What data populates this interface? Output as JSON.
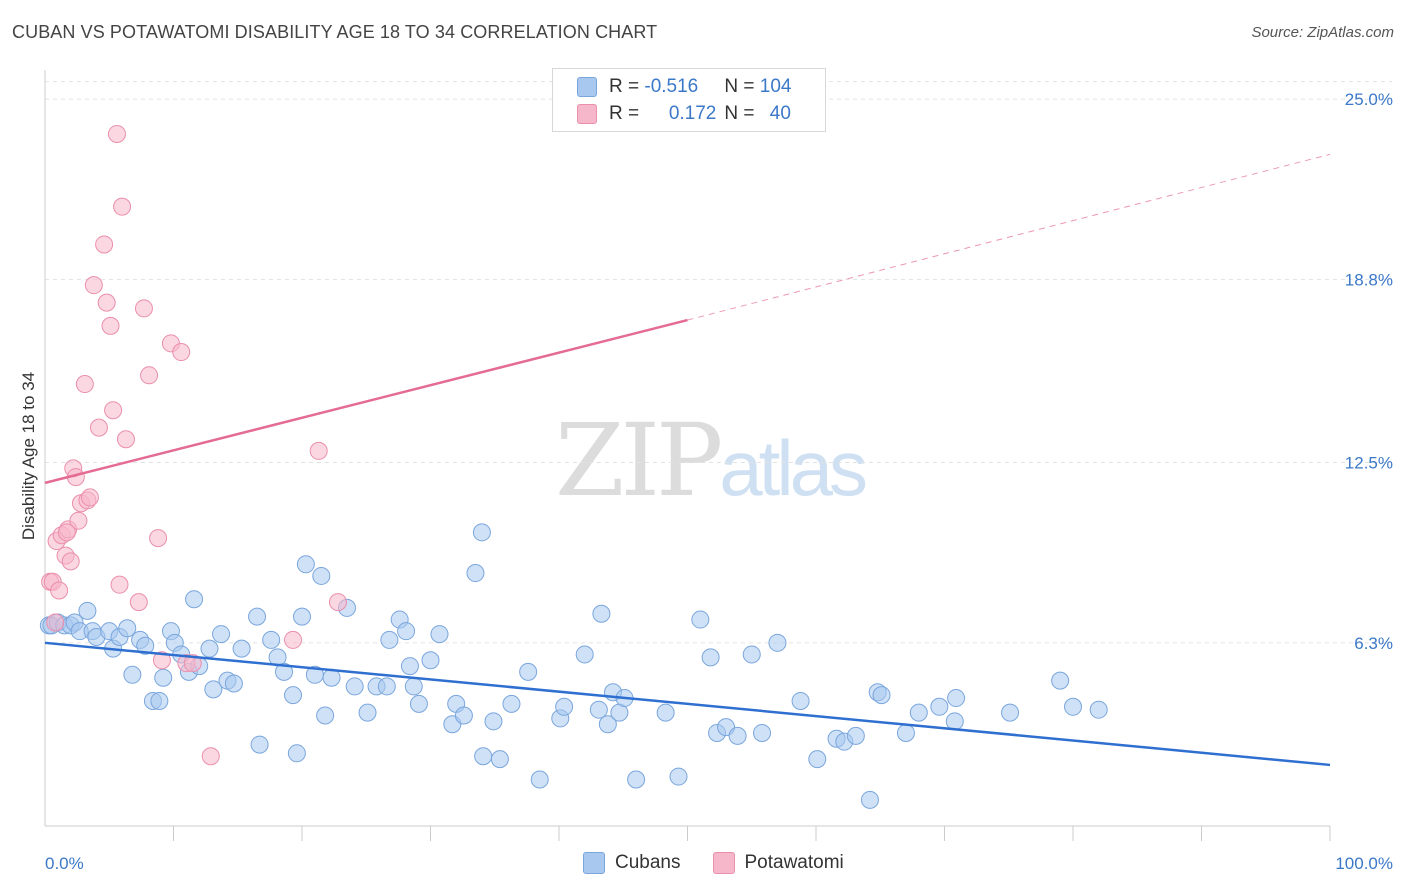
{
  "title": "CUBAN VS POTAWATOMI DISABILITY AGE 18 TO 34 CORRELATION CHART",
  "source": "Source: ZipAtlas.com",
  "watermark": {
    "zip": "ZIP",
    "atlas": "atlas"
  },
  "legend": {
    "rows": [
      {
        "r_label": "R = ",
        "r_value": "-0.516",
        "n_label": "N = ",
        "n_value": "104",
        "color": "#a8c8f0"
      },
      {
        "r_label": "R = ",
        "r_value": "0.172",
        "n_label": "N = ",
        "n_value": "40",
        "color": "#f7b7cb"
      }
    ]
  },
  "bottom_legend": [
    {
      "label": "Cubans",
      "color": "#a8c8f0"
    },
    {
      "label": "Potawatomi",
      "color": "#f7b7cb"
    }
  ],
  "chart_data": {
    "type": "scatter",
    "title": "CUBAN VS POTAWATOMI DISABILITY AGE 18 TO 34 CORRELATION CHART",
    "ylabel": "Disability Age 18 to 34",
    "xlabel": "",
    "xlim": [
      0,
      100
    ],
    "ylim": [
      0,
      26
    ],
    "x_tick_labels": [
      "0.0%",
      "100.0%"
    ],
    "y_ticks": [
      6.3,
      12.5,
      18.8,
      25.0
    ],
    "y_tick_labels": [
      "6.3%",
      "12.5%",
      "18.8%",
      "25.0%"
    ],
    "grid": true,
    "legend_position": "top-center",
    "series": [
      {
        "name": "Cubans",
        "color": "#a8c8f0",
        "edge": "#7aa6dc",
        "trend_color": "#2e6fd0",
        "trend": {
          "x0": 0,
          "y0": 6.3,
          "x1": 100,
          "y1": 2.1
        },
        "points": [
          [
            0.3,
            6.9
          ],
          [
            0.5,
            6.9
          ],
          [
            1.0,
            7.0
          ],
          [
            1.5,
            6.9
          ],
          [
            2.0,
            6.9
          ],
          [
            2.3,
            7.0
          ],
          [
            2.7,
            6.7
          ],
          [
            3.3,
            7.4
          ],
          [
            3.7,
            6.7
          ],
          [
            4.0,
            6.5
          ],
          [
            5.0,
            6.7
          ],
          [
            5.3,
            6.1
          ],
          [
            5.8,
            6.5
          ],
          [
            6.4,
            6.8
          ],
          [
            6.8,
            5.2
          ],
          [
            7.4,
            6.4
          ],
          [
            7.8,
            6.2
          ],
          [
            8.4,
            4.3
          ],
          [
            8.9,
            4.3
          ],
          [
            9.2,
            5.1
          ],
          [
            9.8,
            6.7
          ],
          [
            10.1,
            6.3
          ],
          [
            10.6,
            5.9
          ],
          [
            11.2,
            5.3
          ],
          [
            11.6,
            7.8
          ],
          [
            12.0,
            5.5
          ],
          [
            12.8,
            6.1
          ],
          [
            13.1,
            4.7
          ],
          [
            13.7,
            6.6
          ],
          [
            14.2,
            5.0
          ],
          [
            14.7,
            4.9
          ],
          [
            15.3,
            6.1
          ],
          [
            16.5,
            7.2
          ],
          [
            16.7,
            2.8
          ],
          [
            17.6,
            6.4
          ],
          [
            18.1,
            5.8
          ],
          [
            18.6,
            5.3
          ],
          [
            19.3,
            4.5
          ],
          [
            19.6,
            2.5
          ],
          [
            20.0,
            7.2
          ],
          [
            20.3,
            9.0
          ],
          [
            21.0,
            5.2
          ],
          [
            21.5,
            8.6
          ],
          [
            21.8,
            3.8
          ],
          [
            22.3,
            5.1
          ],
          [
            23.5,
            7.5
          ],
          [
            24.1,
            4.8
          ],
          [
            25.1,
            3.9
          ],
          [
            25.8,
            4.8
          ],
          [
            26.6,
            4.8
          ],
          [
            26.8,
            6.4
          ],
          [
            27.6,
            7.1
          ],
          [
            28.1,
            6.7
          ],
          [
            28.4,
            5.5
          ],
          [
            28.7,
            4.8
          ],
          [
            29.1,
            4.2
          ],
          [
            30.0,
            5.7
          ],
          [
            30.7,
            6.6
          ],
          [
            31.7,
            3.5
          ],
          [
            32.0,
            4.2
          ],
          [
            32.6,
            3.8
          ],
          [
            33.5,
            8.7
          ],
          [
            34.0,
            10.1
          ],
          [
            34.1,
            2.4
          ],
          [
            34.9,
            3.6
          ],
          [
            35.4,
            2.3
          ],
          [
            36.3,
            4.2
          ],
          [
            37.6,
            5.3
          ],
          [
            38.5,
            1.6
          ],
          [
            40.1,
            3.7
          ],
          [
            40.4,
            4.1
          ],
          [
            42.0,
            5.9
          ],
          [
            43.1,
            4.0
          ],
          [
            43.3,
            7.3
          ],
          [
            43.8,
            3.5
          ],
          [
            44.2,
            4.6
          ],
          [
            44.7,
            3.9
          ],
          [
            45.1,
            4.4
          ],
          [
            46.0,
            1.6
          ],
          [
            48.3,
            3.9
          ],
          [
            49.3,
            1.7
          ],
          [
            51.0,
            7.1
          ],
          [
            51.8,
            5.8
          ],
          [
            52.3,
            3.2
          ],
          [
            53.0,
            3.4
          ],
          [
            53.9,
            3.1
          ],
          [
            55.0,
            5.9
          ],
          [
            55.8,
            3.2
          ],
          [
            57.0,
            6.3
          ],
          [
            58.8,
            4.3
          ],
          [
            60.1,
            2.3
          ],
          [
            61.6,
            3.0
          ],
          [
            62.2,
            2.9
          ],
          [
            63.1,
            3.1
          ],
          [
            64.2,
            0.9
          ],
          [
            64.8,
            4.6
          ],
          [
            65.1,
            4.5
          ],
          [
            67.0,
            3.2
          ],
          [
            68.0,
            3.9
          ],
          [
            69.6,
            4.1
          ],
          [
            70.8,
            3.6
          ],
          [
            70.9,
            4.4
          ],
          [
            75.1,
            3.9
          ],
          [
            79.0,
            5.0
          ],
          [
            80.0,
            4.1
          ],
          [
            82.0,
            4.0
          ]
        ]
      },
      {
        "name": "Potawatomi",
        "color": "#f7b7cb",
        "edge": "#ea8fac",
        "trend_color": "#e46b93",
        "trend": {
          "x0": 0,
          "y0": 11.8,
          "x1": 50,
          "y1": 17.4
        },
        "trend_dashed": {
          "x0": 50,
          "y0": 17.4,
          "x1": 100,
          "y1": 23.1
        },
        "points": [
          [
            0.4,
            8.4
          ],
          [
            0.6,
            8.4
          ],
          [
            0.8,
            7.0
          ],
          [
            0.9,
            9.8
          ],
          [
            1.1,
            8.1
          ],
          [
            1.3,
            10.0
          ],
          [
            1.6,
            9.3
          ],
          [
            1.8,
            10.2
          ],
          [
            2.0,
            9.1
          ],
          [
            2.2,
            12.3
          ],
          [
            2.4,
            12.0
          ],
          [
            2.6,
            10.5
          ],
          [
            2.8,
            11.1
          ],
          [
            3.1,
            15.2
          ],
          [
            3.3,
            11.2
          ],
          [
            3.5,
            11.3
          ],
          [
            3.8,
            18.6
          ],
          [
            4.2,
            13.7
          ],
          [
            4.6,
            20.0
          ],
          [
            4.8,
            18.0
          ],
          [
            5.1,
            17.2
          ],
          [
            5.3,
            14.3
          ],
          [
            5.6,
            23.8
          ],
          [
            5.8,
            8.3
          ],
          [
            6.0,
            21.3
          ],
          [
            6.3,
            13.3
          ],
          [
            7.3,
            7.7
          ],
          [
            7.7,
            17.8
          ],
          [
            8.1,
            15.5
          ],
          [
            8.8,
            9.9
          ],
          [
            9.1,
            5.7
          ],
          [
            9.8,
            16.6
          ],
          [
            10.6,
            16.3
          ],
          [
            11.0,
            5.6
          ],
          [
            11.5,
            5.6
          ],
          [
            12.9,
            2.4
          ],
          [
            19.3,
            6.4
          ],
          [
            21.3,
            12.9
          ],
          [
            22.8,
            7.7
          ],
          [
            1.7,
            10.1
          ]
        ]
      }
    ]
  }
}
